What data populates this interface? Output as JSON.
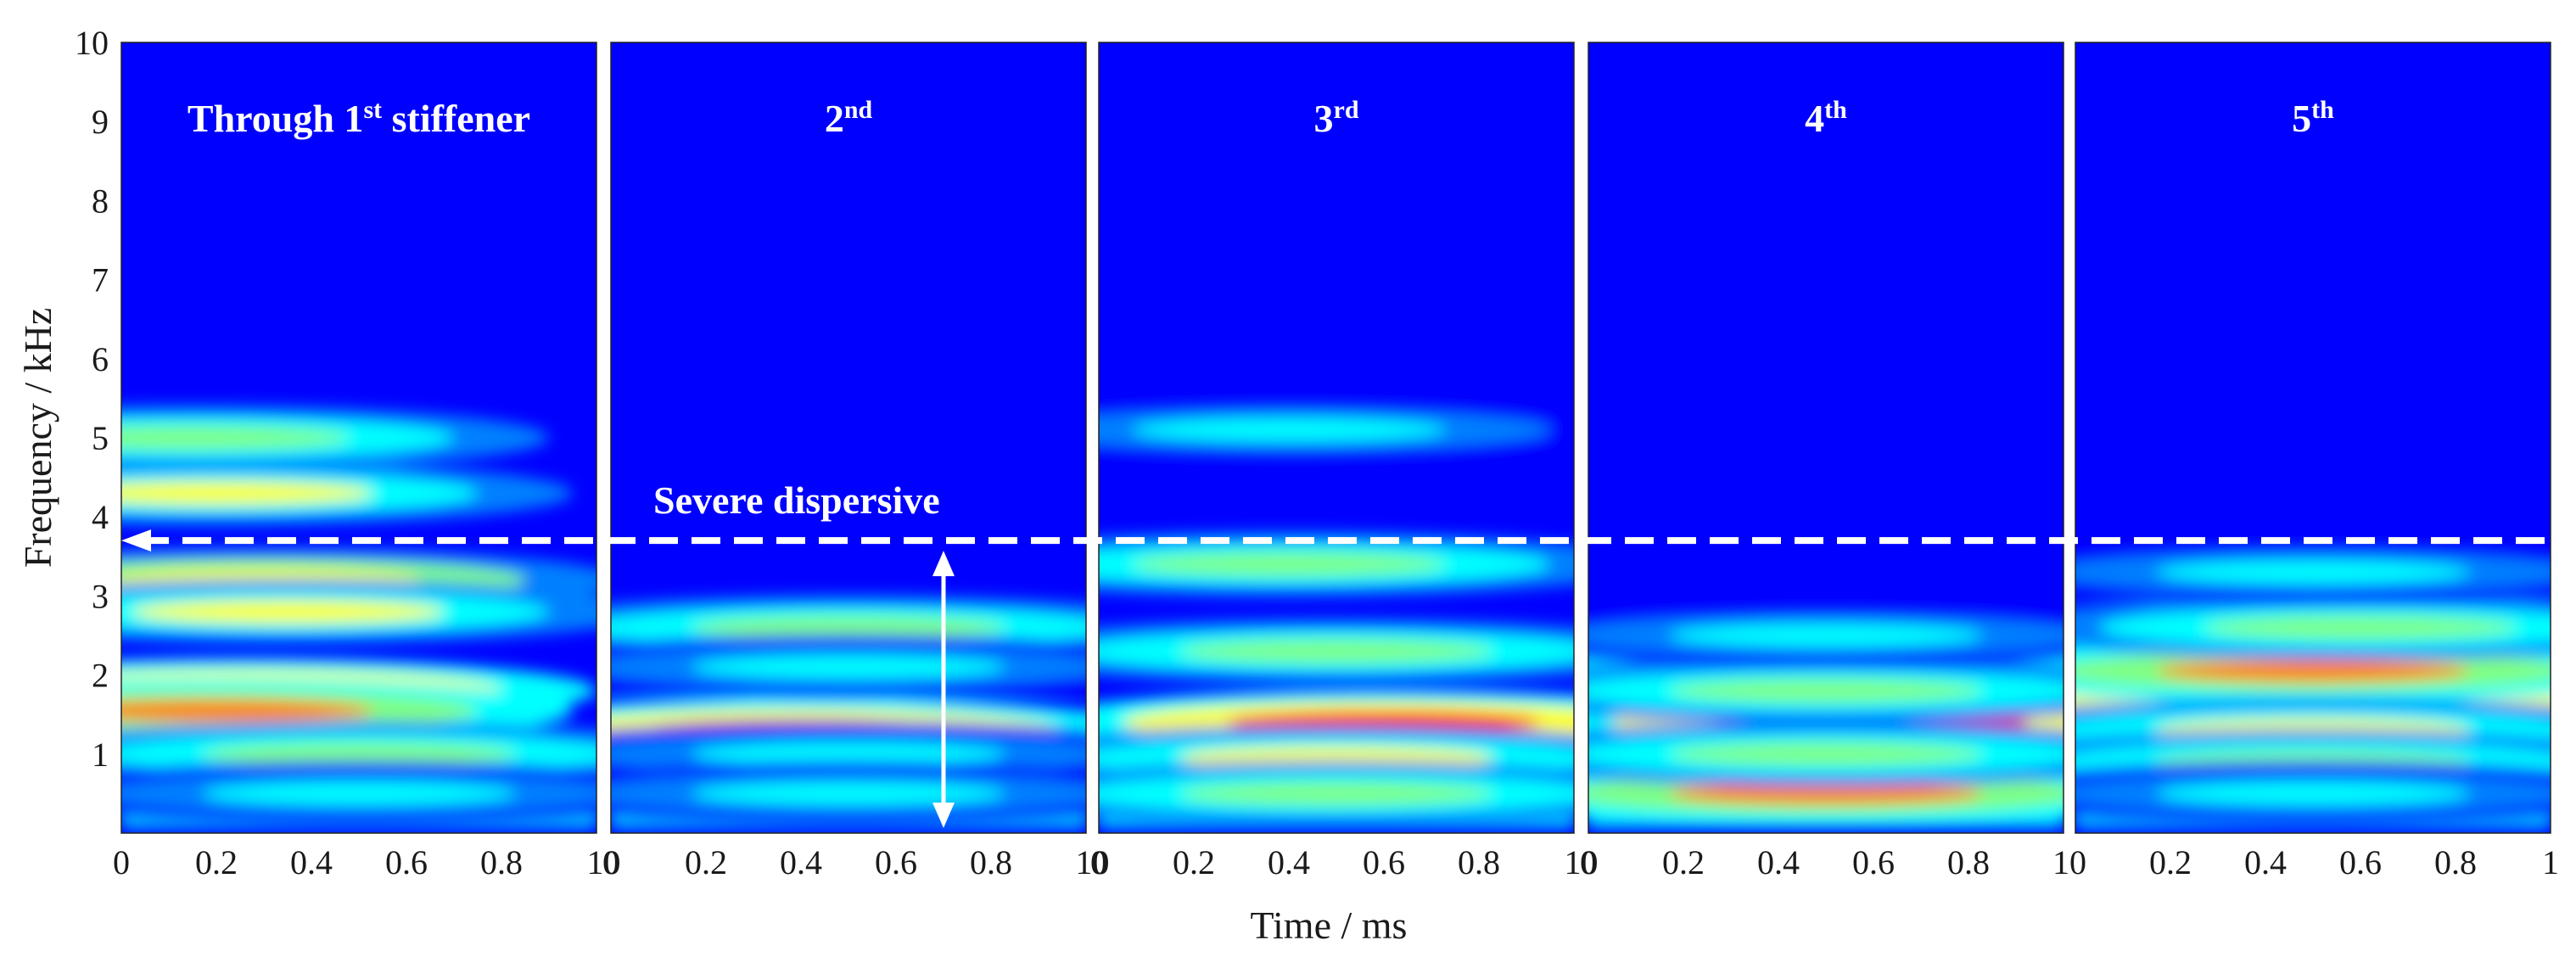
{
  "chart_data": {
    "type": "heatmap",
    "xlabel": "Time / ms",
    "ylabel": "Frequency / kHz",
    "xlim": [
      0,
      1
    ],
    "ylim": [
      0,
      10
    ],
    "x_ticks": [
      "0",
      "0.2",
      "0.4",
      "0.6",
      "0.8",
      "1"
    ],
    "y_ticks": [
      "1",
      "2",
      "3",
      "4",
      "5",
      "6",
      "7",
      "8",
      "9",
      "10"
    ],
    "colormap": [
      "#00008f",
      "#0000ff",
      "#0080ff",
      "#00ffff",
      "#80ff80",
      "#ffff00",
      "#ff8000",
      "#ff0000",
      "#800000"
    ],
    "reference_line": {
      "frequency_khz": 3.7,
      "label": "Severe dispersive",
      "color": "#ffffff",
      "style": "dashed"
    },
    "dispersion_arrow": {
      "time_ms": 0.7,
      "from_khz": 0.0,
      "to_khz": 3.7
    },
    "panels": [
      {
        "title": "Through 1",
        "title_sup": "st",
        "title_suffix": " stiffener",
        "x_tick_labels": [
          "0",
          "0.2",
          "0.4",
          "0.6",
          "0.8",
          ""
        ],
        "bands": [
          {
            "f": 1.8,
            "intensity": 0.95,
            "peak_time": 0.25
          },
          {
            "f": 1.55,
            "intensity": 0.7,
            "peak_time": 0.2
          },
          {
            "f": 3.2,
            "intensity": 0.65,
            "peak_time": 0.3
          },
          {
            "f": 2.8,
            "intensity": 0.6,
            "peak_time": 0.35
          },
          {
            "f": 4.3,
            "intensity": 0.6,
            "peak_time": 0.2
          },
          {
            "f": 5.0,
            "intensity": 0.5,
            "peak_time": 0.15
          },
          {
            "f": 1.0,
            "intensity": 0.45,
            "peak_time": 0.5
          },
          {
            "f": 0.5,
            "intensity": 0.4,
            "peak_time": 0.5
          }
        ]
      },
      {
        "title": "2",
        "title_sup": "nd",
        "title_suffix": "",
        "x_tick_labels": [
          "0",
          "0.2",
          "0.4",
          "0.6",
          "0.8",
          ""
        ],
        "bands": [
          {
            "f": 1.3,
            "intensity": 0.92,
            "peak_time": 0.4
          },
          {
            "f": 2.6,
            "intensity": 0.55,
            "peak_time": 0.5
          },
          {
            "f": 2.1,
            "intensity": 0.4,
            "peak_time": 0.5
          },
          {
            "f": 1.0,
            "intensity": 0.4,
            "peak_time": 0.5
          },
          {
            "f": 0.5,
            "intensity": 0.35,
            "peak_time": 0.5
          }
        ]
      },
      {
        "title": "3",
        "title_sup": "rd",
        "title_suffix": "",
        "x_tick_labels": [
          "0",
          "0.2",
          "0.4",
          "0.6",
          "0.8",
          ""
        ],
        "bands": [
          {
            "f": 1.4,
            "intensity": 0.9,
            "peak_time": 0.6
          },
          {
            "f": 0.95,
            "intensity": 0.6,
            "peak_time": 0.5
          },
          {
            "f": 3.4,
            "intensity": 0.55,
            "peak_time": 0.4
          },
          {
            "f": 2.3,
            "intensity": 0.45,
            "peak_time": 0.5
          },
          {
            "f": 5.1,
            "intensity": 0.4,
            "peak_time": 0.4
          },
          {
            "f": 0.5,
            "intensity": 0.45,
            "peak_time": 0.5
          }
        ]
      },
      {
        "title": "4",
        "title_sup": "th",
        "title_suffix": "",
        "x_tick_labels": [
          "0",
          "0.2",
          "0.4",
          "0.6",
          "0.8",
          ""
        ],
        "bands": [
          {
            "f": 1.4,
            "intensity": 0.9,
            "peak_time": 0.6
          },
          {
            "f": 0.5,
            "intensity": 0.7,
            "peak_time": 0.5
          },
          {
            "f": 2.1,
            "intensity": 0.55,
            "peak_time": 0.5
          },
          {
            "f": 1.8,
            "intensity": 0.5,
            "peak_time": 0.5
          },
          {
            "f": 2.5,
            "intensity": 0.4,
            "peak_time": 0.5
          },
          {
            "f": 1.0,
            "intensity": 0.45,
            "peak_time": 0.5
          }
        ]
      },
      {
        "title": "5",
        "title_sup": "th",
        "title_suffix": "",
        "x_tick_labels": [
          "",
          "0.2",
          "0.4",
          "0.6",
          "0.8",
          "1"
        ],
        "bands": [
          {
            "f": 1.7,
            "intensity": 0.88,
            "peak_time": 0.5
          },
          {
            "f": 2.05,
            "intensity": 0.7,
            "peak_time": 0.5
          },
          {
            "f": 1.3,
            "intensity": 0.6,
            "peak_time": 0.5
          },
          {
            "f": 2.6,
            "intensity": 0.45,
            "peak_time": 0.6
          },
          {
            "f": 3.3,
            "intensity": 0.35,
            "peak_time": 0.5
          },
          {
            "f": 0.9,
            "intensity": 0.45,
            "peak_time": 0.5
          },
          {
            "f": 0.5,
            "intensity": 0.35,
            "peak_time": 0.5
          }
        ]
      }
    ]
  }
}
